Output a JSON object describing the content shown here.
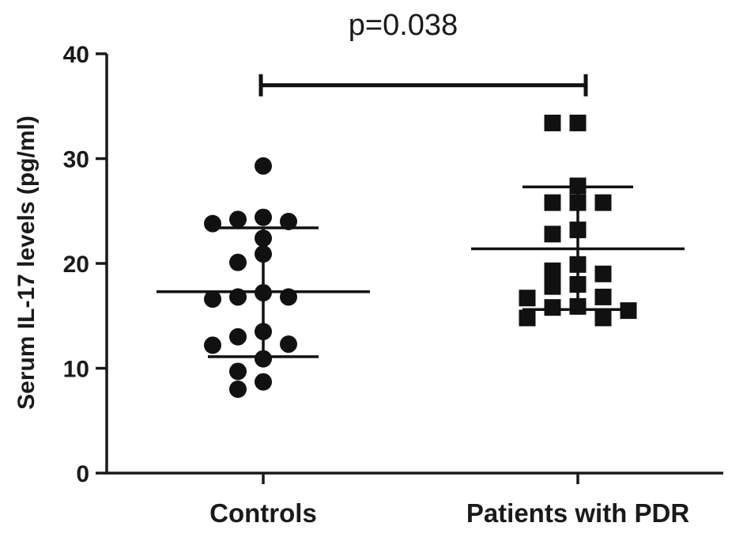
{
  "chart_data": {
    "type": "scatter",
    "ylabel": "Serum IL-17 levels (pg/ml)",
    "xlabel": "",
    "ylim": [
      0,
      40
    ],
    "yticks": [
      0,
      10,
      20,
      30,
      40
    ],
    "grid": false,
    "categories": [
      "Controls",
      "Patients with PDR"
    ],
    "annotation": {
      "text": "p=0.038",
      "between": [
        "Controls",
        "Patients with PDR"
      ],
      "bracket_y": 37
    },
    "series": [
      {
        "category": "Controls",
        "marker": "circle",
        "values": [
          29.3,
          24.4,
          24.0,
          23.8,
          24.2,
          22.4,
          20.9,
          20.1,
          17.2,
          16.8,
          16.6,
          16.8,
          13.5,
          13.0,
          12.2,
          12.3,
          10.9,
          9.7,
          8.7,
          8.0
        ],
        "mean": 17.3,
        "sd_low": 11.1,
        "sd_high": 23.4
      },
      {
        "category": "Patients with PDR",
        "marker": "square",
        "values": [
          33.4,
          33.4,
          27.4,
          25.8,
          25.8,
          25.8,
          23.2,
          22.8,
          19.9,
          19.3,
          19.0,
          18.0,
          17.8,
          16.8,
          16.7,
          15.9,
          15.8,
          15.5,
          14.8,
          14.8
        ],
        "mean": 21.4,
        "sd_low": 15.6,
        "sd_high": 27.3
      }
    ]
  },
  "colors": {
    "axis": "#1a1a1a",
    "marker": "#111111",
    "background": "#ffffff"
  }
}
